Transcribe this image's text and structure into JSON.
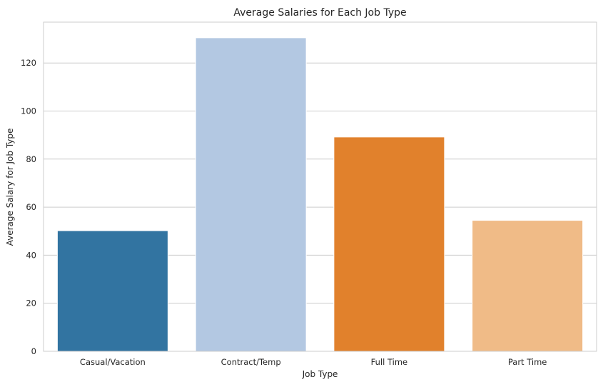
{
  "chart_data": {
    "type": "bar",
    "title": "Average Salaries for Each Job Type",
    "xlabel": "Job Type",
    "ylabel": "Average Salary for Job Type",
    "categories": [
      "Casual/Vacation",
      "Contract/Temp",
      "Full Time",
      "Part Time"
    ],
    "values": [
      50.2,
      130.5,
      89.2,
      54.5
    ],
    "colors": [
      "#3274a1",
      "#b3c8e2",
      "#e1812c",
      "#f0bb87"
    ],
    "yticks": [
      0,
      20,
      40,
      60,
      80,
      100,
      120
    ],
    "ylim": [
      0,
      137
    ],
    "grid": "horizontal",
    "background": "#ffffff",
    "grid_color": "#cccccc",
    "spine_color": "#cccccc"
  }
}
